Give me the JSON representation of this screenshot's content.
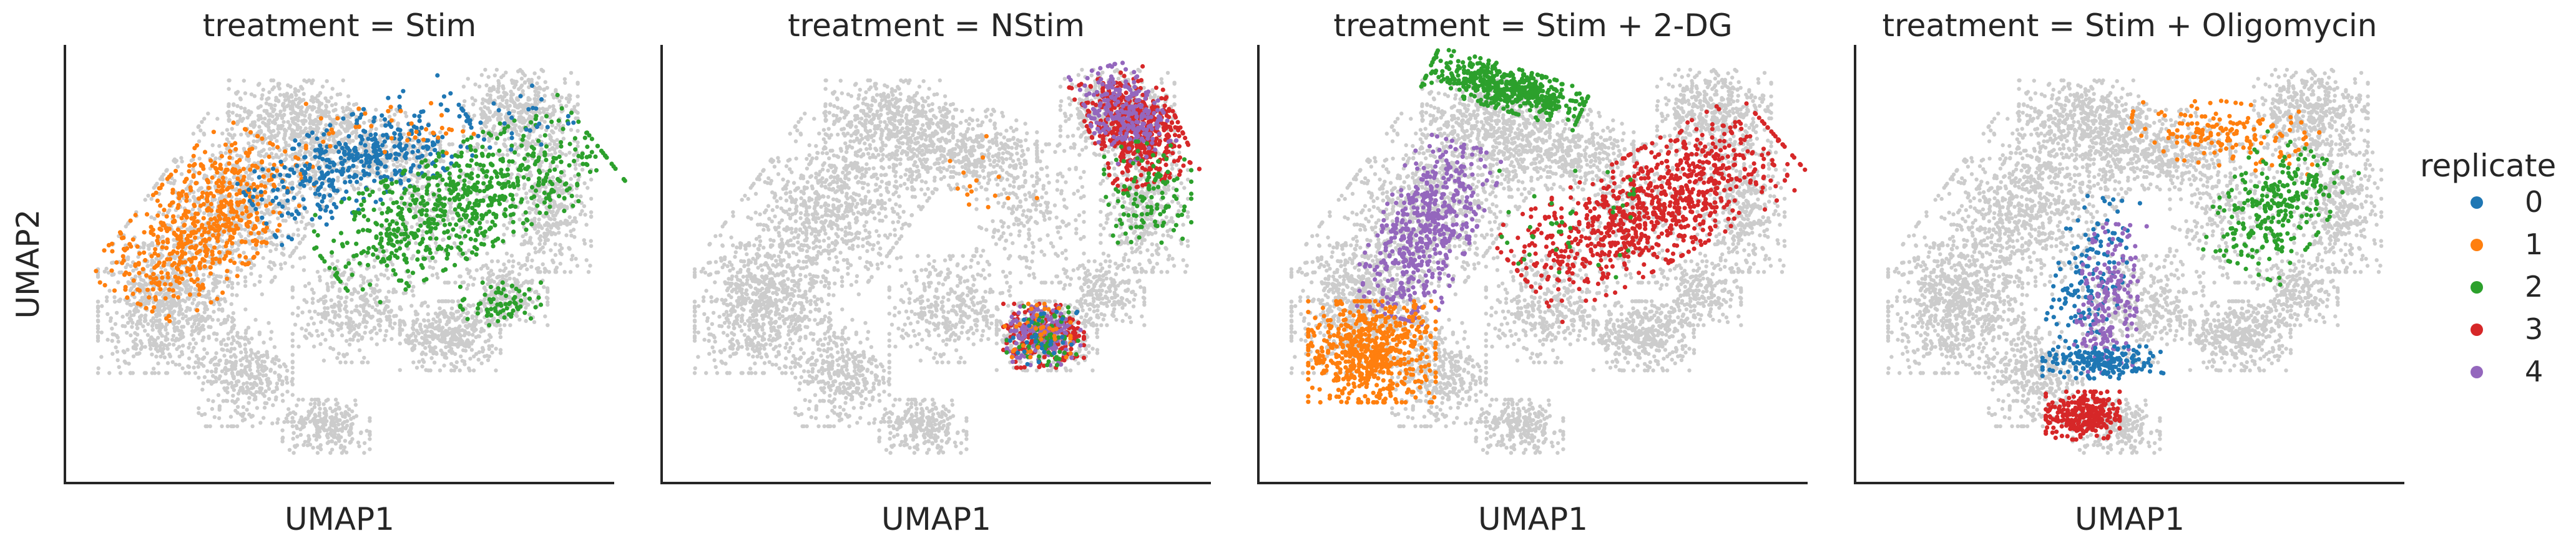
{
  "chart_data": {
    "type": "scatter",
    "legend": {
      "title": "replicate",
      "placement": "right",
      "entries": [
        {
          "label": "0",
          "color": "#1f77b4"
        },
        {
          "label": "1",
          "color": "#ff7f0e"
        },
        {
          "label": "2",
          "color": "#2ca02c"
        },
        {
          "label": "3",
          "color": "#d62728"
        },
        {
          "label": "4",
          "color": "#9467bd"
        }
      ]
    },
    "background_color": "#cccccc",
    "grid": false,
    "panels": [
      {
        "title": "treatment = Stim",
        "xlabel": "UMAP1",
        "ylabel": "UMAP2",
        "clusters": [
          {
            "replicate": "1",
            "cx": -6.0,
            "cy": 2.0,
            "rx": 1.9,
            "ry": 3.6,
            "angle": -35,
            "n": 600
          },
          {
            "replicate": "0",
            "cx": -1.4,
            "cy": 4.4,
            "rx": 1.6,
            "ry": 3.6,
            "angle": -60,
            "n": 420
          },
          {
            "replicate": "2",
            "cx": 1.6,
            "cy": 2.8,
            "rx": 1.9,
            "ry": 4.6,
            "angle": -58,
            "n": 700
          },
          {
            "replicate": "2",
            "cx": 2.8,
            "cy": -1.0,
            "rx": 1.2,
            "ry": 0.8,
            "angle": 0,
            "n": 70
          },
          {
            "replicate": "1",
            "cx": -0.5,
            "cy": 5.6,
            "rx": 2.5,
            "ry": 1.0,
            "angle": 0,
            "n": 40
          },
          {
            "replicate": "0",
            "cx": 3.4,
            "cy": 6.0,
            "rx": 1.6,
            "ry": 1.2,
            "angle": 0,
            "n": 25
          }
        ]
      },
      {
        "title": "treatment = NStim",
        "xlabel": "UMAP1",
        "ylabel": "",
        "clusters": [
          {
            "replicate": "3",
            "cx": 3.9,
            "cy": 5.6,
            "rx": 1.3,
            "ry": 2.1,
            "angle": 20,
            "n": 520
          },
          {
            "replicate": "4",
            "cx": 3.6,
            "cy": 6.2,
            "rx": 1.1,
            "ry": 1.8,
            "angle": 20,
            "n": 260
          },
          {
            "replicate": "2",
            "cx": 4.3,
            "cy": 3.2,
            "rx": 1.3,
            "ry": 1.9,
            "angle": 0,
            "n": 120
          },
          {
            "replicate": "3",
            "cx": 1.2,
            "cy": -2.2,
            "rx": 1.2,
            "ry": 1.2,
            "angle": 0,
            "n": 200
          },
          {
            "replicate": "4",
            "cx": 1.2,
            "cy": -2.2,
            "rx": 1.1,
            "ry": 1.1,
            "angle": 0,
            "n": 170
          },
          {
            "replicate": "2",
            "cx": 1.2,
            "cy": -2.2,
            "rx": 1.1,
            "ry": 1.1,
            "angle": 0,
            "n": 60
          },
          {
            "replicate": "1",
            "cx": 1.0,
            "cy": -2.0,
            "rx": 1.0,
            "ry": 1.0,
            "angle": 0,
            "n": 40
          },
          {
            "replicate": "0",
            "cx": 1.2,
            "cy": -2.3,
            "rx": 1.0,
            "ry": 1.0,
            "angle": 0,
            "n": 30
          },
          {
            "replicate": "1",
            "cx": -0.5,
            "cy": 3.5,
            "rx": 1.5,
            "ry": 1.8,
            "angle": 0,
            "n": 15
          }
        ]
      },
      {
        "title": "treatment = Stim + 2-DG",
        "xlabel": "UMAP1",
        "ylabel": "",
        "clusters": [
          {
            "replicate": "2",
            "cx": -2.8,
            "cy": 7.1,
            "rx": 2.4,
            "ry": 0.8,
            "angle": -20,
            "n": 520
          },
          {
            "replicate": "4",
            "cx": -5.2,
            "cy": 1.8,
            "rx": 1.4,
            "ry": 3.4,
            "angle": -20,
            "n": 520
          },
          {
            "replicate": "1",
            "cx": -6.8,
            "cy": -2.8,
            "rx": 1.9,
            "ry": 1.9,
            "angle": 0,
            "n": 620
          },
          {
            "replicate": "3",
            "cx": 1.5,
            "cy": 2.6,
            "rx": 2.0,
            "ry": 4.6,
            "angle": -55,
            "n": 900
          },
          {
            "replicate": "2",
            "cx": -1.0,
            "cy": 2.0,
            "rx": 2.0,
            "ry": 2.0,
            "angle": 0,
            "n": 40
          }
        ]
      },
      {
        "title": "treatment = Stim + Oligomycin",
        "xlabel": "UMAP1",
        "ylabel": "",
        "clusters": [
          {
            "replicate": "1",
            "cx": 0.8,
            "cy": 5.4,
            "rx": 2.8,
            "ry": 1.2,
            "angle": -10,
            "n": 160
          },
          {
            "replicate": "2",
            "cx": 2.3,
            "cy": 2.6,
            "rx": 1.6,
            "ry": 2.4,
            "angle": -30,
            "n": 280
          },
          {
            "replicate": "0",
            "cx": -3.2,
            "cy": 0.0,
            "rx": 1.0,
            "ry": 3.0,
            "angle": -10,
            "n": 150
          },
          {
            "replicate": "4",
            "cx": -2.6,
            "cy": -0.8,
            "rx": 0.9,
            "ry": 2.8,
            "angle": -5,
            "n": 200
          },
          {
            "replicate": "0",
            "cx": -2.8,
            "cy": -3.2,
            "rx": 1.8,
            "ry": 0.6,
            "angle": 0,
            "n": 180
          },
          {
            "replicate": "3",
            "cx": -3.4,
            "cy": -5.2,
            "rx": 1.1,
            "ry": 0.9,
            "angle": 0,
            "n": 300
          }
        ]
      }
    ],
    "background_shape": [
      {
        "cx": -7.2,
        "cy": -1.2,
        "rx": 2.0,
        "ry": 2.4,
        "angle": 0,
        "n": 700
      },
      {
        "cx": -5.2,
        "cy": 2.6,
        "rx": 2.4,
        "ry": 3.4,
        "angle": -30,
        "n": 900
      },
      {
        "cx": -4.8,
        "cy": -3.6,
        "rx": 1.4,
        "ry": 2.0,
        "angle": 0,
        "n": 350
      },
      {
        "cx": -3.4,
        "cy": 6.0,
        "rx": 1.9,
        "ry": 1.4,
        "angle": 0,
        "n": 400
      },
      {
        "cx": -1.2,
        "cy": 4.8,
        "rx": 2.2,
        "ry": 1.5,
        "angle": 0,
        "n": 450
      },
      {
        "cx": -2.4,
        "cy": -5.6,
        "rx": 1.3,
        "ry": 1.0,
        "angle": 0,
        "n": 250
      },
      {
        "cx": -1.6,
        "cy": -1.2,
        "rx": 1.8,
        "ry": 2.0,
        "angle": 0,
        "n": 350
      },
      {
        "cx": 0.8,
        "cy": 2.4,
        "rx": 1.6,
        "ry": 2.6,
        "angle": 0,
        "n": 250
      },
      {
        "cx": 3.4,
        "cy": 6.2,
        "rx": 1.7,
        "ry": 1.6,
        "angle": 0,
        "n": 450
      },
      {
        "cx": 4.2,
        "cy": 2.6,
        "rx": 1.3,
        "ry": 2.4,
        "angle": 0,
        "n": 380
      },
      {
        "cx": 1.3,
        "cy": -2.2,
        "rx": 1.5,
        "ry": 1.3,
        "angle": 0,
        "n": 380
      },
      {
        "cx": 3.0,
        "cy": -0.6,
        "rx": 1.2,
        "ry": 1.2,
        "angle": 0,
        "n": 200
      }
    ],
    "xlim": [
      -10,
      6
    ],
    "ylim": [
      -7.5,
      8.5
    ]
  }
}
